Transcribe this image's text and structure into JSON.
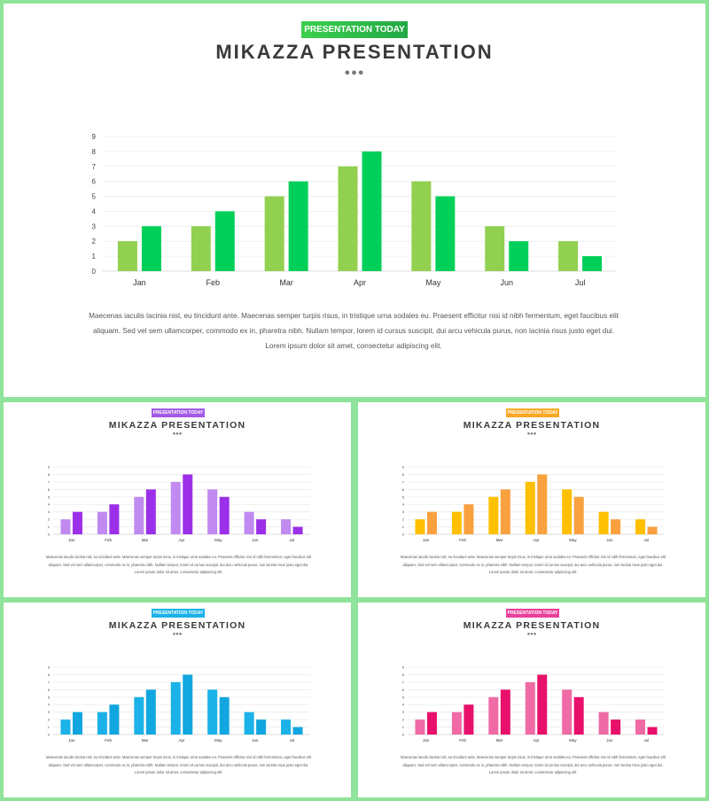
{
  "slides": [
    {
      "badge": "PRESENTATION TODAY",
      "title": "MIKAZZA PRESENTATION",
      "dots": "●●●",
      "desc": "Maecenas iaculis lacinia nisl, eu tincidunt ante. Maecenas semper turpis risus, in tristique urna sodales eu. Praesent efficitur nisi id nibh fermentum, eget faucibus elit aliquam. Sed vel sem ullamcorper, commodo ex in, pharetra nibh. Nullam tempor, lorem id cursus suscipit, dui arcu vehicula purus, non lacinia risus justo eget dui. Lorem ipsum dolor sit amet, consectetur adipiscing elit.",
      "colors": {
        "badge": "#2fbf4a",
        "light": "#92d050",
        "dark": "#00d05a"
      }
    },
    {
      "badge": "PRESENTATION TODAY",
      "title": "MIKAZZA PRESENTATION",
      "dots": "●●●",
      "desc": "Maecenas iaculis lacinia nisl, eu tincidunt ante. Maecenas semper turpis risus, in tristique urna sodales eu. Praesent efficitur nisi id nibh fermentum, eget faucibus elit aliquam. Sed vel sem ullamcorper, commodo ex in, pharetra nibh. Nullam tempor, lorem id cursus suscipit, dui arcu vehicula purus, non lacinia risus justo eget dui. Lorem ipsum dolor sit amet, consectetur adipiscing elit.",
      "colors": {
        "badge": "#a259e6",
        "light": "#c08af0",
        "dark": "#9b30e8"
      }
    },
    {
      "badge": "PRESENTATION TODAY",
      "title": "MIKAZZA PRESENTATION",
      "dots": "●●●",
      "desc": "Maecenas iaculis lacinia nisl, eu tincidunt ante. Maecenas semper turpis risus, in tristique urna sodales eu. Praesent efficitur nisi id nibh fermentum, eget faucibus elit aliquam. Sed vel sem ullamcorper, commodo ex in, pharetra nibh. Nullam tempor, lorem id cursus suscipit, dui arcu vehicula purus, non lacinia risus justo eget dui. Lorem ipsum dolor sit amet, consectetur adipiscing elit.",
      "colors": {
        "badge": "#f9a825",
        "light": "#ffc000",
        "dark": "#f9a03f"
      }
    },
    {
      "badge": "PRESENTATION TODAY",
      "title": "MIKAZZA PRESENTATION",
      "dots": "●●●",
      "desc": "Maecenas iaculis lacinia nisl, eu tincidunt ante. Maecenas semper turpis risus, in tristique urna sodales eu. Praesent efficitur nisi id nibh fermentum, eget faucibus elit aliquam. Sed vel sem ullamcorper, commodo ex in, pharetra nibh. Nullam tempor, lorem id cursus suscipit, dui arcu vehicula purus, non lacinia risus justo eget dui. Lorem ipsum dolor sit amet, consectetur adipiscing elit.",
      "colors": {
        "badge": "#1ab2e8",
        "light": "#1ab2e8",
        "dark": "#12a6e0"
      }
    },
    {
      "badge": "PRESENTATION TODAY",
      "title": "MIKAZZA PRESENTATION",
      "dots": "●●●",
      "desc": "Maecenas iaculis lacinia nisl, eu tincidunt ante. Maecenas semper turpis risus, in tristique urna sodales eu. Praesent efficitur nisi id nibh fermentum, eget faucibus elit aliquam. Sed vel sem ullamcorper, commodo ex in, pharetra nibh. Nullam tempor, lorem id cursus suscipit, dui arcu vehicula purus, non lacinia risus justo eget dui. Lorem ipsum dolor sit amet, consectetur adipiscing elit.",
      "colors": {
        "badge": "#e8409a",
        "light": "#f06aa5",
        "dark": "#e8106a"
      }
    }
  ],
  "chart_data": {
    "type": "bar",
    "categories": [
      "Jan",
      "Feb",
      "Mar",
      "Apr",
      "May",
      "Jun",
      "Jul"
    ],
    "series": [
      {
        "values": [
          2,
          3,
          5,
          7,
          6,
          3,
          2
        ]
      },
      {
        "values": [
          3,
          4,
          6,
          8,
          5,
          2,
          1
        ]
      }
    ],
    "ylim": [
      0,
      9
    ],
    "yticks": [
      "0",
      "1",
      "2",
      "3",
      "4",
      "5",
      "6",
      "7",
      "8",
      "9"
    ],
    "grid": true,
    "legend": "none"
  }
}
